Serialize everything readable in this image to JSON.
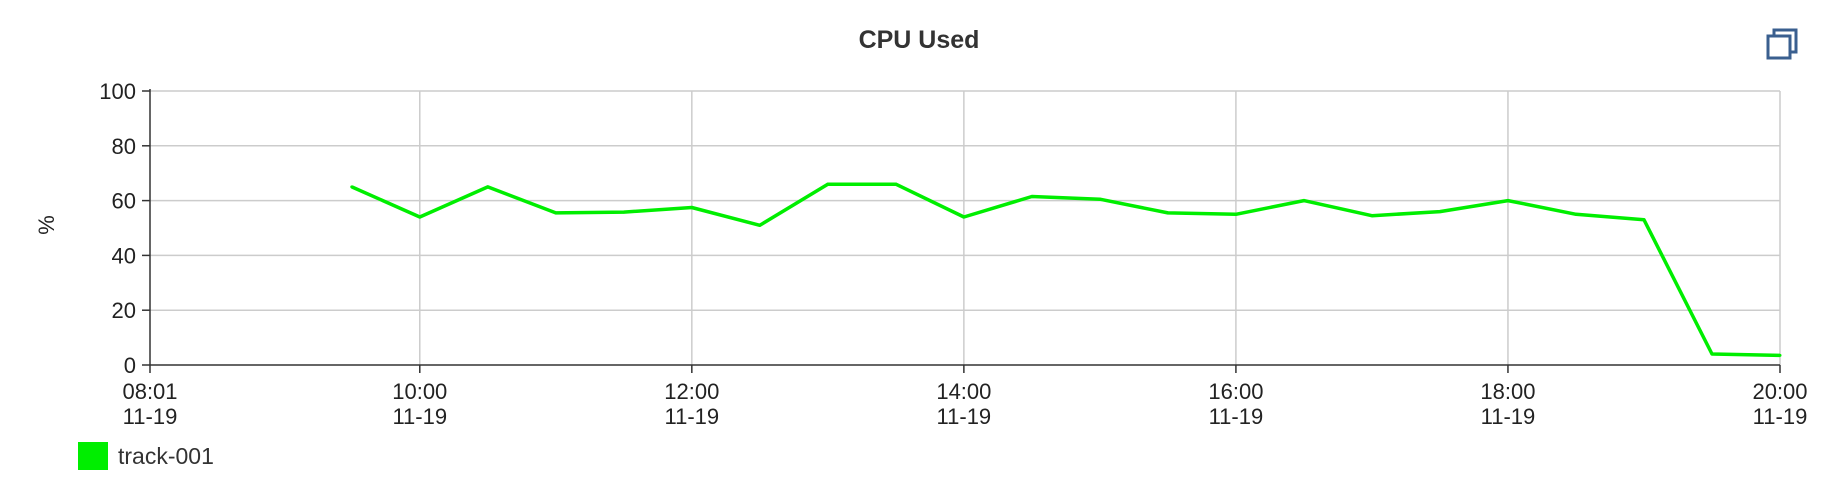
{
  "chart_data": {
    "type": "line",
    "title": "CPU Used",
    "ylabel": "%",
    "xlabel": "",
    "ylim": [
      0,
      100
    ],
    "yticks": [
      0,
      20,
      40,
      60,
      80,
      100
    ],
    "xlim": [
      "08:01",
      "20:00"
    ],
    "xticks": [
      {
        "time": "08:01",
        "date": "11-19"
      },
      {
        "time": "10:00",
        "date": "11-19"
      },
      {
        "time": "12:00",
        "date": "11-19"
      },
      {
        "time": "14:00",
        "date": "11-19"
      },
      {
        "time": "16:00",
        "date": "11-19"
      },
      {
        "time": "18:00",
        "date": "11-19"
      },
      {
        "time": "20:00",
        "date": "11-19"
      }
    ],
    "grid": true,
    "legend_position": "bottom-left",
    "series": [
      {
        "name": "track-001",
        "color": "#00ee00",
        "x": [
          "09:30",
          "10:00",
          "10:30",
          "11:00",
          "11:30",
          "12:00",
          "12:30",
          "13:00",
          "13:30",
          "14:00",
          "14:30",
          "15:00",
          "15:30",
          "16:00",
          "16:30",
          "17:00",
          "17:30",
          "18:00",
          "18:30",
          "19:00",
          "19:30",
          "20:00"
        ],
        "values": [
          65,
          54,
          65,
          55.5,
          55.8,
          57.5,
          51,
          66,
          66,
          54,
          61.5,
          60.5,
          55.5,
          55,
          60,
          54.5,
          56,
          60,
          55,
          53,
          4,
          3.5
        ]
      }
    ]
  },
  "toolbar": {
    "expand_icon": "restore-window-icon"
  }
}
